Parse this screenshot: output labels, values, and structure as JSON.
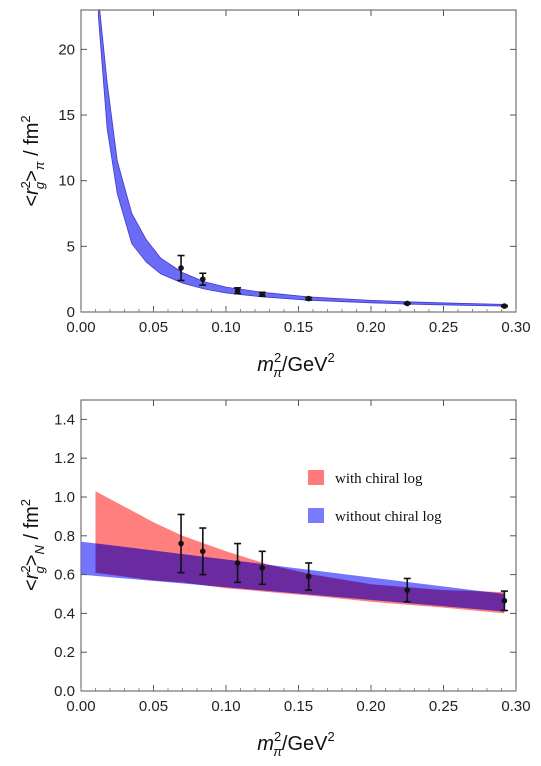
{
  "chart_data": [
    {
      "type": "scatter",
      "title": "",
      "ylabel": "<r_g^2>_π / fm^2",
      "ylabel_parts": {
        "open": "<",
        "r": "r",
        "sup": "2",
        "sub": "g",
        "close": ">",
        "rsub": "π",
        "unit": " / fm",
        "unitsup": "2"
      },
      "xlabel": "m_π^2/GeV^2",
      "xlabel_parts": {
        "m": "m",
        "sup": "2",
        "sub": "π",
        "unit": "/GeV",
        "unitsup": "2"
      },
      "xlim": [
        0,
        0.3
      ],
      "ylim": [
        0,
        23
      ],
      "xticks": [
        "0.00",
        "0.05",
        "0.10",
        "0.15",
        "0.20",
        "0.25",
        "0.30"
      ],
      "yticks": [
        "0",
        "5",
        "10",
        "15",
        "20"
      ],
      "band_color": "#6b6bf5",
      "band": {
        "x": [
          0.012,
          0.018,
          0.025,
          0.035,
          0.045,
          0.055,
          0.07,
          0.085,
          0.1,
          0.125,
          0.157,
          0.2,
          0.225,
          0.26,
          0.292
        ],
        "lower": [
          22.5,
          14.0,
          9.0,
          5.2,
          3.8,
          2.9,
          2.2,
          1.75,
          1.45,
          1.15,
          0.9,
          0.7,
          0.6,
          0.52,
          0.45
        ],
        "upper": [
          24.0,
          17.5,
          11.5,
          7.5,
          5.5,
          4.1,
          3.0,
          2.3,
          1.9,
          1.5,
          1.15,
          0.88,
          0.78,
          0.66,
          0.58
        ]
      },
      "points": [
        {
          "x": 0.069,
          "y": 3.35,
          "err": 0.95
        },
        {
          "x": 0.084,
          "y": 2.5,
          "err": 0.45
        },
        {
          "x": 0.108,
          "y": 1.62,
          "err": 0.22
        },
        {
          "x": 0.125,
          "y": 1.35,
          "err": 0.15
        },
        {
          "x": 0.157,
          "y": 1.02,
          "err": 0.1
        },
        {
          "x": 0.225,
          "y": 0.65,
          "err": 0.05
        },
        {
          "x": 0.292,
          "y": 0.45,
          "err": 0.05
        }
      ]
    },
    {
      "type": "scatter",
      "title": "",
      "ylabel": "<r_g^2>_N / fm^2",
      "ylabel_parts": {
        "open": "<",
        "r": "r",
        "sup": "2",
        "sub": "g",
        "close": ">",
        "rsub": "N",
        "unit": " / fm",
        "unitsup": "2"
      },
      "xlabel": "m_π^2/GeV^2",
      "xlabel_parts": {
        "m": "m",
        "sup": "2",
        "sub": "π",
        "unit": "/GeV",
        "unitsup": "2"
      },
      "xlim": [
        0,
        0.3
      ],
      "ylim": [
        0,
        1.5
      ],
      "xticks": [
        "0.00",
        "0.05",
        "0.10",
        "0.15",
        "0.20",
        "0.25",
        "0.30"
      ],
      "yticks": [
        "0.0",
        "0.2",
        "0.4",
        "0.6",
        "0.8",
        "1.0",
        "1.2",
        "1.4"
      ],
      "legend": {
        "placement": "top-right",
        "items": [
          {
            "label": "with chiral log",
            "color": "#ff7a7a"
          },
          {
            "label": "without chiral log",
            "color": "#7a7aff"
          }
        ]
      },
      "bands": [
        {
          "name": "with chiral log",
          "color": "#ff7070",
          "x": [
            0.01,
            0.03,
            0.05,
            0.07,
            0.1,
            0.13,
            0.16,
            0.2,
            0.25,
            0.292
          ],
          "lower": [
            0.61,
            0.59,
            0.57,
            0.56,
            0.53,
            0.51,
            0.49,
            0.46,
            0.43,
            0.4
          ],
          "upper": [
            1.03,
            0.95,
            0.87,
            0.8,
            0.72,
            0.65,
            0.6,
            0.55,
            0.52,
            0.51
          ]
        },
        {
          "name": "without chiral log",
          "color": "#5c5cff",
          "x": [
            0.0,
            0.292
          ],
          "lower": [
            0.6,
            0.41
          ],
          "upper": [
            0.77,
            0.5
          ]
        }
      ],
      "overlap_color": "#6a2aa0",
      "points": [
        {
          "x": 0.069,
          "y": 0.76,
          "err": 0.15
        },
        {
          "x": 0.084,
          "y": 0.72,
          "err": 0.12
        },
        {
          "x": 0.108,
          "y": 0.66,
          "err": 0.1
        },
        {
          "x": 0.125,
          "y": 0.635,
          "err": 0.085
        },
        {
          "x": 0.157,
          "y": 0.59,
          "err": 0.07
        },
        {
          "x": 0.225,
          "y": 0.52,
          "err": 0.06
        },
        {
          "x": 0.292,
          "y": 0.465,
          "err": 0.05
        }
      ]
    }
  ]
}
